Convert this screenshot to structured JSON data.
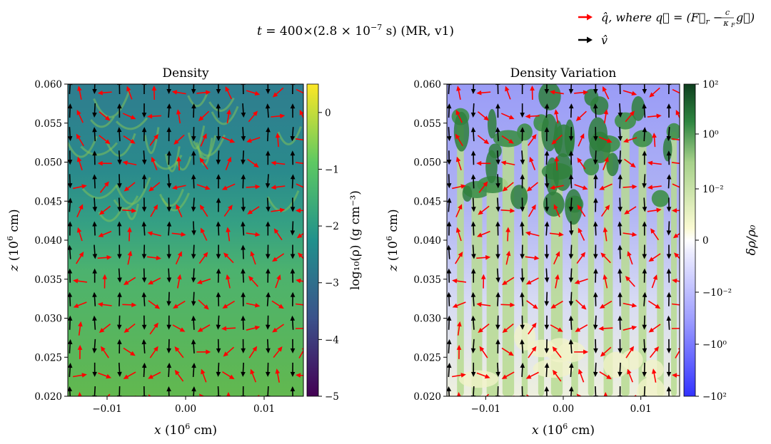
{
  "figure": {
    "suptitle_pre": "t",
    "suptitle_eq": " =  400×(2.8 × 10",
    "suptitle_exp": "−7",
    "suptitle_post": " s) (MR, v1)"
  },
  "legend": {
    "entries": [
      {
        "name": "red-arrow",
        "color": "#ff0000",
        "pre": "q̂,  where ",
        "vec": "q⃗ = (F⃗",
        "sub": "r",
        "minus": " − ",
        "frac_num": "c",
        "frac_den": "κ",
        "frac_den_sub": "F",
        "post": "g⃗)"
      },
      {
        "name": "black-arrow",
        "color": "#000000",
        "pre": "v̂"
      }
    ]
  },
  "chart_data": [
    {
      "type": "heatmap",
      "title": "Density",
      "xlabel": "x",
      "xlabel_units": " (10",
      "xlabel_exp": "6",
      "xlabel_end": " cm)",
      "ylabel": "z",
      "ylabel_units": " (10",
      "ylabel_exp": "6",
      "ylabel_end": " cm)",
      "xlim": [
        -0.015,
        0.015
      ],
      "ylim": [
        0.02,
        0.06
      ],
      "xticks": [
        -0.01,
        0.0,
        0.01
      ],
      "xtick_labels": [
        "−0.01",
        "0.00",
        "0.01"
      ],
      "yticks": [
        0.02,
        0.025,
        0.03,
        0.035,
        0.04,
        0.045,
        0.05,
        0.055,
        0.06
      ],
      "ytick_labels": [
        "0.020",
        "0.025",
        "0.030",
        "0.035",
        "0.040",
        "0.045",
        "0.050",
        "0.055",
        "0.060"
      ],
      "colorbar": {
        "label": "log₁₀(ρ) (g cm⁻³)",
        "range": [
          -5,
          0.5
        ],
        "ticks": [
          0,
          -1,
          -2,
          -3,
          -4,
          -5
        ],
        "tick_labels": [
          "0",
          "−1",
          "−2",
          "−3",
          "−4",
          "−5"
        ],
        "colors": [
          "#440154",
          "#3b528b",
          "#21918c",
          "#5ec962",
          "#fde725"
        ]
      }
    },
    {
      "type": "heatmap",
      "title": "Density Variation",
      "xlabel": "x",
      "xlabel_units": " (10",
      "xlabel_exp": "6",
      "xlabel_end": " cm)",
      "ylabel": "z",
      "ylabel_units": " (10",
      "ylabel_exp": "6",
      "ylabel_end": " cm)",
      "xlim": [
        -0.015,
        0.015
      ],
      "ylim": [
        0.02,
        0.06
      ],
      "xticks": [
        -0.01,
        0.0,
        0.01
      ],
      "xtick_labels": [
        "−0.01",
        "0.00",
        "0.01"
      ],
      "yticks": [
        0.02,
        0.025,
        0.03,
        0.035,
        0.04,
        0.045,
        0.05,
        0.055,
        0.06
      ],
      "ytick_labels": [
        "0.020",
        "0.025",
        "0.030",
        "0.035",
        "0.040",
        "0.045",
        "0.050",
        "0.055",
        "0.060"
      ],
      "colorbar": {
        "label": "δρ/ρ₀",
        "scale": "symlog",
        "ticks": [
          100,
          1,
          0.01,
          0,
          -0.01,
          -1,
          -100
        ],
        "tick_labels": [
          "10²",
          "10⁰",
          "10⁻²",
          "0",
          "−10⁻²",
          "−10⁰",
          "−10²"
        ],
        "colors": [
          "#0f3f1f",
          "#2e8540",
          "#a6d18a",
          "#fafad2",
          "#ffffff",
          "#b8b8ff",
          "#3333ff"
        ]
      }
    }
  ]
}
